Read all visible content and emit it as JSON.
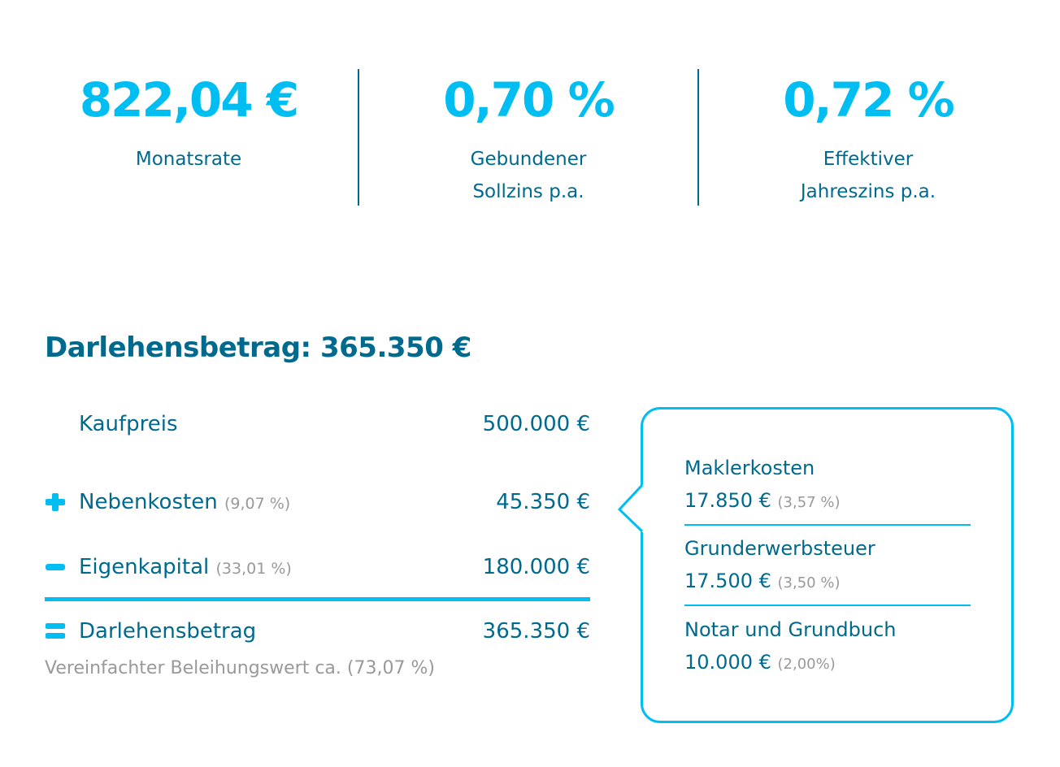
{
  "stats": [
    {
      "value": "822,04 €",
      "label_lines": [
        "Monatsrate"
      ]
    },
    {
      "value": "0,70 %",
      "label_lines": [
        "Gebundener",
        "Sollzins p.a."
      ]
    },
    {
      "value": "0,72 %",
      "label_lines": [
        "Effektiver",
        "Jahreszins p.a."
      ]
    }
  ],
  "heading": "Darlehensbetrag: 365.350 €",
  "rows": [
    {
      "label": "Kaufpreis",
      "pct": "",
      "value": "500.000 €",
      "icon": "none"
    },
    {
      "label": "Nebenkosten",
      "pct": "(9,07 %)",
      "value": "45.350 €",
      "icon": "plus-icon"
    },
    {
      "label": "Eigenkapital",
      "pct": "(33,01 %)",
      "value": "180.000 €",
      "icon": "minus-icon"
    },
    {
      "label": "Darlehensbetrag",
      "pct": "",
      "value": "365.350 €",
      "icon": "equals-icon"
    }
  ],
  "note": "Vereinfachter Beleihungswert ca. (73,07 %)",
  "breakdown": [
    {
      "label": "Maklerkosten",
      "value": "17.850 €",
      "pct": "(3,57 %)"
    },
    {
      "label": "Grunderwerbsteuer",
      "value": "17.500 €",
      "pct": "(3,50 %)"
    },
    {
      "label": "Notar und Grundbuch",
      "value": "10.000 €",
      "pct": "(2,00%)"
    }
  ],
  "colors": {
    "accent": "#00bdf2",
    "primary": "#006a8e",
    "muted": "#999999"
  }
}
